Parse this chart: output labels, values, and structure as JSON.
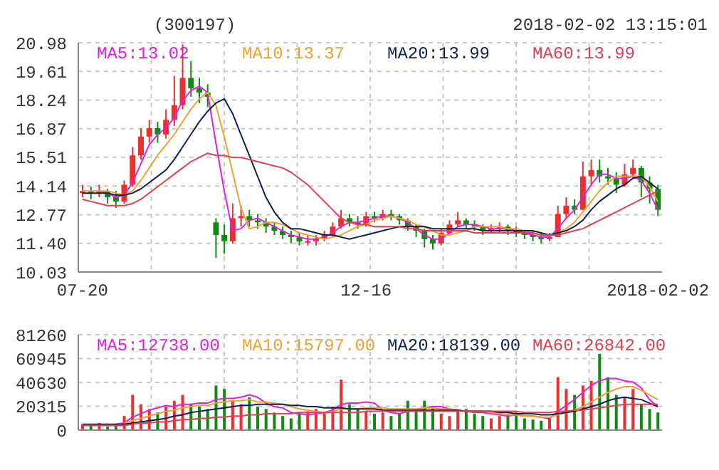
{
  "chart_data": [
    {
      "type": "candlestick",
      "title": "(300197)",
      "subtitle": "2018-02-02 13:15:01",
      "categories": [
        "07-20",
        null,
        null,
        null,
        null,
        null,
        null,
        null,
        null,
        null,
        null,
        null,
        null,
        null,
        null,
        null,
        null,
        null,
        null,
        null,
        null,
        null,
        null,
        null,
        null,
        null,
        null,
        null,
        null,
        null,
        null,
        null,
        null,
        null,
        "12-16",
        null,
        null,
        null,
        null,
        null,
        null,
        null,
        null,
        null,
        null,
        null,
        null,
        null,
        null,
        null,
        null,
        null,
        null,
        null,
        null,
        null,
        null,
        null,
        null,
        null,
        null,
        null,
        null,
        null,
        null,
        null,
        null,
        null,
        null,
        "2018-02-02"
      ],
      "ohlc": [
        [
          13.8,
          14.2,
          13.6,
          13.9
        ],
        [
          13.9,
          14.1,
          13.5,
          13.8
        ],
        [
          13.8,
          14.2,
          13.6,
          13.9
        ],
        [
          13.9,
          14.0,
          13.3,
          13.6
        ],
        [
          13.6,
          13.9,
          13.1,
          13.4
        ],
        [
          13.4,
          14.4,
          13.3,
          14.2
        ],
        [
          14.2,
          16.0,
          14.1,
          15.6
        ],
        [
          15.6,
          16.9,
          15.4,
          16.5
        ],
        [
          16.5,
          17.3,
          16.2,
          16.9
        ],
        [
          16.9,
          17.2,
          16.2,
          16.6
        ],
        [
          16.6,
          17.8,
          16.4,
          17.3
        ],
        [
          17.3,
          19.4,
          17.0,
          18.0
        ],
        [
          18.0,
          20.9,
          17.8,
          19.3
        ],
        [
          19.3,
          20.1,
          18.4,
          18.8
        ],
        [
          18.8,
          19.3,
          18.1,
          18.6
        ],
        [
          18.6,
          19.0,
          17.9,
          18.4
        ],
        [
          12.4,
          12.6,
          10.7,
          11.8
        ],
        [
          11.8,
          12.3,
          10.9,
          11.5
        ],
        [
          11.5,
          13.3,
          11.4,
          12.6
        ],
        [
          12.6,
          13.2,
          12.2,
          12.7
        ],
        [
          12.7,
          13.0,
          12.2,
          12.5
        ],
        [
          12.5,
          12.8,
          12.1,
          12.4
        ],
        [
          12.4,
          12.6,
          11.9,
          12.2
        ],
        [
          12.2,
          12.4,
          11.8,
          12.0
        ],
        [
          12.0,
          12.2,
          11.6,
          11.8
        ],
        [
          11.8,
          12.0,
          11.4,
          11.7
        ],
        [
          11.7,
          11.9,
          11.3,
          11.5
        ],
        [
          11.5,
          11.8,
          11.3,
          11.5
        ],
        [
          11.5,
          11.8,
          11.3,
          11.6
        ],
        [
          11.6,
          12.0,
          11.5,
          11.8
        ],
        [
          11.8,
          12.4,
          11.7,
          12.2
        ],
        [
          12.2,
          13.0,
          12.1,
          12.6
        ],
        [
          12.6,
          12.8,
          12.2,
          12.4
        ],
        [
          12.4,
          12.7,
          12.1,
          12.3
        ],
        [
          12.3,
          12.9,
          12.2,
          12.7
        ],
        [
          12.7,
          12.9,
          12.4,
          12.6
        ],
        [
          12.6,
          13.0,
          12.5,
          12.8
        ],
        [
          12.8,
          13.0,
          12.5,
          12.7
        ],
        [
          12.7,
          12.8,
          12.3,
          12.5
        ],
        [
          12.5,
          12.6,
          12.0,
          12.2
        ],
        [
          12.2,
          12.3,
          11.7,
          12.0
        ],
        [
          12.0,
          12.1,
          11.2,
          11.6
        ],
        [
          11.6,
          11.8,
          11.1,
          11.4
        ],
        [
          11.4,
          12.1,
          11.3,
          11.9
        ],
        [
          11.9,
          12.5,
          11.8,
          12.3
        ],
        [
          12.3,
          12.9,
          12.2,
          12.5
        ],
        [
          12.5,
          12.6,
          12.1,
          12.3
        ],
        [
          12.3,
          12.5,
          12.0,
          12.2
        ],
        [
          12.2,
          12.3,
          11.8,
          12.0
        ],
        [
          12.0,
          12.3,
          11.9,
          12.1
        ],
        [
          12.1,
          12.4,
          11.9,
          12.2
        ],
        [
          12.2,
          12.3,
          11.8,
          12.0
        ],
        [
          12.0,
          12.2,
          11.7,
          11.9
        ],
        [
          11.9,
          12.0,
          11.6,
          11.8
        ],
        [
          11.8,
          12.0,
          11.5,
          11.7
        ],
        [
          11.7,
          11.9,
          11.4,
          11.6
        ],
        [
          11.6,
          11.9,
          11.5,
          11.7
        ],
        [
          11.7,
          13.2,
          11.7,
          12.8
        ],
        [
          12.8,
          13.6,
          12.6,
          13.2
        ],
        [
          13.2,
          13.5,
          12.8,
          13.0
        ],
        [
          13.0,
          15.3,
          13.0,
          14.6
        ],
        [
          14.6,
          15.4,
          14.2,
          14.9
        ],
        [
          14.9,
          15.4,
          14.3,
          14.6
        ],
        [
          14.6,
          15.0,
          14.2,
          14.5
        ],
        [
          14.5,
          14.8,
          13.8,
          14.2
        ],
        [
          14.2,
          15.2,
          14.1,
          14.7
        ],
        [
          14.7,
          15.4,
          14.5,
          15.0
        ],
        [
          15.0,
          15.1,
          13.6,
          14.3
        ],
        [
          14.3,
          14.6,
          13.3,
          14.0
        ],
        [
          14.0,
          14.2,
          12.7,
          13.0
        ]
      ],
      "colors": [
        "#e83030",
        "#108a10",
        "#e83030",
        "#108a10",
        "#108a10",
        "#e83030",
        "#e83030",
        "#e83030",
        "#e83030",
        "#108a10",
        "#e83030",
        "#e83030",
        "#e83030",
        "#108a10",
        "#108a10",
        "#108a10",
        "#108a10",
        "#108a10",
        "#e83030",
        "#e83030",
        "#108a10",
        "#108a10",
        "#108a10",
        "#108a10",
        "#108a10",
        "#108a10",
        "#108a10",
        "#e83030",
        "#e83030",
        "#e83030",
        "#e83030",
        "#e83030",
        "#108a10",
        "#108a10",
        "#e83030",
        "#108a10",
        "#e83030",
        "#108a10",
        "#108a10",
        "#108a10",
        "#108a10",
        "#108a10",
        "#108a10",
        "#e83030",
        "#e83030",
        "#e83030",
        "#108a10",
        "#108a10",
        "#108a10",
        "#e83030",
        "#e83030",
        "#108a10",
        "#108a10",
        "#108a10",
        "#108a10",
        "#108a10",
        "#e83030",
        "#e83030",
        "#e83030",
        "#108a10",
        "#e83030",
        "#e83030",
        "#108a10",
        "#108a10",
        "#108a10",
        "#e83030",
        "#e83030",
        "#108a10",
        "#108a10",
        "#108a10"
      ],
      "series": [
        {
          "name": "MA5:13.02",
          "type": "line",
          "color": "#e020e0",
          "values": [
            null,
            null,
            13.9,
            13.8,
            13.6,
            13.7,
            14.3,
            15.2,
            16.1,
            16.6,
            16.9,
            17.4,
            18.2,
            18.7,
            18.9,
            18.6,
            16.2,
            13.9,
            12.0,
            12.1,
            12.5,
            12.6,
            12.4,
            12.2,
            12.0,
            11.8,
            11.7,
            11.6,
            11.6,
            11.7,
            11.9,
            12.2,
            12.4,
            12.4,
            12.5,
            12.6,
            12.7,
            12.7,
            12.6,
            12.4,
            12.1,
            11.8,
            11.6,
            11.6,
            11.9,
            12.2,
            12.3,
            12.3,
            12.2,
            12.1,
            12.1,
            12.1,
            12.0,
            11.9,
            11.8,
            11.7,
            11.7,
            12.1,
            12.6,
            13.0,
            13.6,
            14.2,
            14.7,
            14.7,
            14.5,
            14.5,
            14.6,
            14.4,
            13.8,
            13.0
          ]
        },
        {
          "name": "MA10:13.37",
          "type": "line",
          "color": "#f0a030",
          "values": [
            13.9,
            13.9,
            13.9,
            13.9,
            13.8,
            13.7,
            13.9,
            14.4,
            15.0,
            15.6,
            16.1,
            16.6,
            17.2,
            17.8,
            18.3,
            18.6,
            18.0,
            16.5,
            14.8,
            13.1,
            12.1,
            12.2,
            12.4,
            12.4,
            12.3,
            12.1,
            11.9,
            11.8,
            11.7,
            11.6,
            11.7,
            11.8,
            12.0,
            12.2,
            12.3,
            12.5,
            12.6,
            12.7,
            12.6,
            12.5,
            12.3,
            12.2,
            12.0,
            11.8,
            11.8,
            11.9,
            12.0,
            12.2,
            12.2,
            12.2,
            12.2,
            12.1,
            12.1,
            12.0,
            11.9,
            11.8,
            11.8,
            11.9,
            12.1,
            12.4,
            12.9,
            13.4,
            13.9,
            14.3,
            14.6,
            14.6,
            14.6,
            14.6,
            14.1,
            13.4
          ]
        },
        {
          "name": "MA20:13.99",
          "type": "line",
          "color": "#102050",
          "values": [
            13.8,
            13.8,
            13.8,
            13.8,
            13.7,
            13.7,
            13.8,
            14.0,
            14.3,
            14.6,
            14.9,
            15.4,
            16.0,
            16.6,
            17.2,
            17.7,
            18.1,
            18.3,
            17.6,
            16.6,
            15.6,
            14.6,
            13.6,
            12.9,
            12.4,
            12.1,
            12.1,
            12.0,
            11.9,
            11.8,
            11.8,
            11.7,
            11.6,
            11.7,
            11.8,
            11.9,
            12.0,
            12.1,
            12.2,
            12.2,
            12.2,
            12.2,
            12.1,
            12.1,
            12.1,
            12.1,
            12.1,
            12.1,
            12.0,
            12.0,
            12.0,
            12.0,
            12.0,
            12.0,
            12.0,
            11.9,
            11.8,
            11.9,
            12.0,
            12.2,
            12.5,
            13.0,
            13.4,
            13.7,
            14.0,
            14.2,
            14.5,
            14.6,
            14.3,
            14.0
          ]
        },
        {
          "name": "MA60:13.99",
          "type": "line",
          "color": "#e04050",
          "values": [
            13.5,
            13.4,
            13.3,
            13.2,
            13.2,
            13.2,
            13.3,
            13.5,
            13.8,
            14.1,
            14.4,
            14.7,
            15.0,
            15.3,
            15.5,
            15.7,
            15.6,
            15.6,
            15.5,
            15.5,
            15.4,
            15.3,
            15.2,
            15.1,
            15.0,
            14.8,
            14.5,
            14.2,
            13.8,
            13.4,
            13.0,
            12.6,
            12.4,
            12.3,
            12.3,
            12.2,
            12.2,
            12.2,
            12.2,
            12.1,
            12.1,
            12.0,
            12.0,
            12.0,
            12.0,
            12.0,
            12.0,
            11.9,
            11.9,
            11.9,
            11.9,
            11.9,
            11.9,
            11.9,
            11.9,
            11.8,
            11.8,
            11.8,
            11.9,
            12.0,
            12.1,
            12.3,
            12.5,
            12.7,
            12.9,
            13.1,
            13.3,
            13.5,
            13.7,
            13.9
          ]
        }
      ],
      "ylim": [
        10.03,
        20.98
      ],
      "yticks": [
        10.03,
        {
          "value": 11.4,
          "label": "11.40"
        },
        12.77,
        14.14,
        15.51,
        16.87,
        18.24,
        19.61,
        20.98
      ],
      "grid": true,
      "legend": "top",
      "marker": "none"
    },
    {
      "type": "bar",
      "categories": [
        null,
        null,
        null,
        null,
        null,
        null,
        null,
        null,
        null,
        null,
        null,
        null,
        null,
        null,
        null,
        null,
        null,
        null,
        null,
        null,
        null,
        null,
        null,
        null,
        null,
        null,
        null,
        null,
        null,
        null,
        null,
        null,
        null,
        null,
        null,
        null,
        null,
        null,
        null,
        null,
        null,
        null,
        null,
        null,
        null,
        null,
        null,
        null,
        null,
        null,
        null,
        null,
        null,
        null,
        null,
        null,
        null,
        null,
        null,
        null,
        null,
        null,
        null,
        null,
        null,
        null,
        null,
        null,
        null,
        null
      ],
      "series": [
        {
          "type": "bar",
          "colors": [
            "#e83030",
            "#108a10",
            "#e83030",
            "#108a10",
            "#108a10",
            "#e83030",
            "#e83030",
            "#e83030",
            "#e83030",
            "#108a10",
            "#e83030",
            "#e83030",
            "#e83030",
            "#108a10",
            "#108a10",
            "#108a10",
            "#108a10",
            "#108a10",
            "#e83030",
            "#e83030",
            "#108a10",
            "#108a10",
            "#108a10",
            "#108a10",
            "#108a10",
            "#108a10",
            "#108a10",
            "#e83030",
            "#e83030",
            "#e83030",
            "#e83030",
            "#e83030",
            "#108a10",
            "#108a10",
            "#e83030",
            "#108a10",
            "#e83030",
            "#108a10",
            "#108a10",
            "#108a10",
            "#108a10",
            "#108a10",
            "#108a10",
            "#e83030",
            "#e83030",
            "#e83030",
            "#108a10",
            "#108a10",
            "#108a10",
            "#e83030",
            "#e83030",
            "#108a10",
            "#108a10",
            "#108a10",
            "#108a10",
            "#108a10",
            "#e83030",
            "#e83030",
            "#e83030",
            "#108a10",
            "#e83030",
            "#e83030",
            "#108a10",
            "#108a10",
            "#108a10",
            "#e83030",
            "#e83030",
            "#108a10",
            "#108a10",
            "#108a10"
          ],
          "values": [
            5000,
            4000,
            6000,
            3000,
            5000,
            12000,
            30000,
            22000,
            18000,
            15000,
            20000,
            25000,
            30000,
            22000,
            20000,
            18000,
            38000,
            35000,
            25000,
            22000,
            28000,
            20000,
            18000,
            15000,
            12000,
            10000,
            14000,
            16000,
            18000,
            15000,
            20000,
            43000,
            22000,
            18000,
            16000,
            14000,
            15000,
            12000,
            14000,
            25000,
            18000,
            25000,
            20000,
            14000,
            12000,
            16000,
            18000,
            14000,
            12000,
            10000,
            12000,
            14000,
            15000,
            10000,
            9000,
            8000,
            10000,
            45000,
            35000,
            30000,
            38000,
            42000,
            65000,
            45000,
            30000,
            28000,
            35000,
            22000,
            18000,
            15000
          ]
        },
        {
          "name": "MA5:12738.00",
          "type": "line",
          "color": "#e020e0",
          "values": [
            null,
            null,
            null,
            null,
            5000,
            6000,
            11000,
            14000,
            17000,
            19000,
            21000,
            20000,
            22000,
            22000,
            23000,
            23000,
            26000,
            27000,
            27000,
            28000,
            30000,
            28000,
            23000,
            20000,
            19000,
            15000,
            14000,
            13000,
            14000,
            15000,
            17000,
            22000,
            23000,
            23000,
            24000,
            23000,
            17000,
            15000,
            14000,
            16000,
            17000,
            19000,
            20000,
            20000,
            18000,
            17000,
            16000,
            15000,
            15000,
            14000,
            13000,
            12000,
            13000,
            12000,
            12000,
            11000,
            10000,
            16000,
            21000,
            26000,
            32000,
            38000,
            42000,
            44000,
            44000,
            42000,
            41000,
            36000,
            26000,
            20000
          ]
        },
        {
          "name": "MA10:15797.00",
          "type": "line",
          "color": "#f0a030",
          "values": [
            null,
            null,
            null,
            null,
            null,
            6000,
            8000,
            10000,
            12000,
            14000,
            16000,
            17000,
            19000,
            20000,
            21000,
            21000,
            23000,
            24000,
            25000,
            25000,
            26000,
            24000,
            24000,
            23000,
            22000,
            20000,
            18000,
            17000,
            16000,
            15000,
            16000,
            18000,
            18000,
            18000,
            19000,
            19000,
            19000,
            18000,
            18000,
            18000,
            18000,
            19000,
            19000,
            18000,
            18000,
            17000,
            16000,
            16000,
            16000,
            15000,
            14000,
            13000,
            13000,
            12000,
            12000,
            11000,
            11000,
            13000,
            15000,
            17000,
            20000,
            24000,
            28000,
            32000,
            35000,
            37000,
            37000,
            34000,
            30000,
            26000
          ]
        },
        {
          "name": "MA20:18139.00",
          "type": "line",
          "color": "#102050",
          "values": [
            5000,
            5000,
            5000,
            5000,
            5000,
            5000,
            6000,
            7000,
            8000,
            9000,
            10000,
            12000,
            13000,
            15000,
            16000,
            17000,
            18000,
            19000,
            20000,
            21000,
            21000,
            22000,
            22000,
            22000,
            22000,
            21000,
            21000,
            20000,
            20000,
            19000,
            19000,
            19000,
            18000,
            18000,
            18000,
            18000,
            17000,
            17000,
            17000,
            17000,
            17000,
            17000,
            17000,
            17000,
            17000,
            17000,
            16000,
            16000,
            16000,
            16000,
            15000,
            15000,
            14000,
            14000,
            14000,
            13000,
            13000,
            14000,
            15000,
            16000,
            18000,
            20000,
            22000,
            25000,
            27000,
            28000,
            27000,
            26000,
            23000,
            20000
          ]
        },
        {
          "name": "MA60:26842.00",
          "type": "line",
          "color": "#e04050",
          "values": [
            4000,
            4000,
            4000,
            4000,
            4000,
            4000,
            5000,
            6000,
            6000,
            7000,
            7000,
            8000,
            9000,
            9000,
            10000,
            10000,
            11000,
            11000,
            12000,
            12000,
            13000,
            13000,
            14000,
            14000,
            14000,
            14000,
            15000,
            15000,
            15000,
            15000,
            15000,
            15000,
            15000,
            15000,
            16000,
            16000,
            16000,
            16000,
            16000,
            16000,
            16000,
            16000,
            16000,
            16000,
            16000,
            16000,
            16000,
            16000,
            16000,
            16000,
            16000,
            16000,
            16000,
            15000,
            15000,
            15000,
            15000,
            16000,
            16000,
            17000,
            17000,
            18000,
            19000,
            20000,
            21000,
            22000,
            22000,
            22000,
            22000,
            22000
          ]
        }
      ],
      "ylim": [
        0,
        81260
      ],
      "yticks": [
        0,
        20315,
        40630,
        60945,
        81260
      ],
      "grid": true,
      "legend": "top",
      "marker": "none",
      "tick_labels": "y"
    }
  ]
}
